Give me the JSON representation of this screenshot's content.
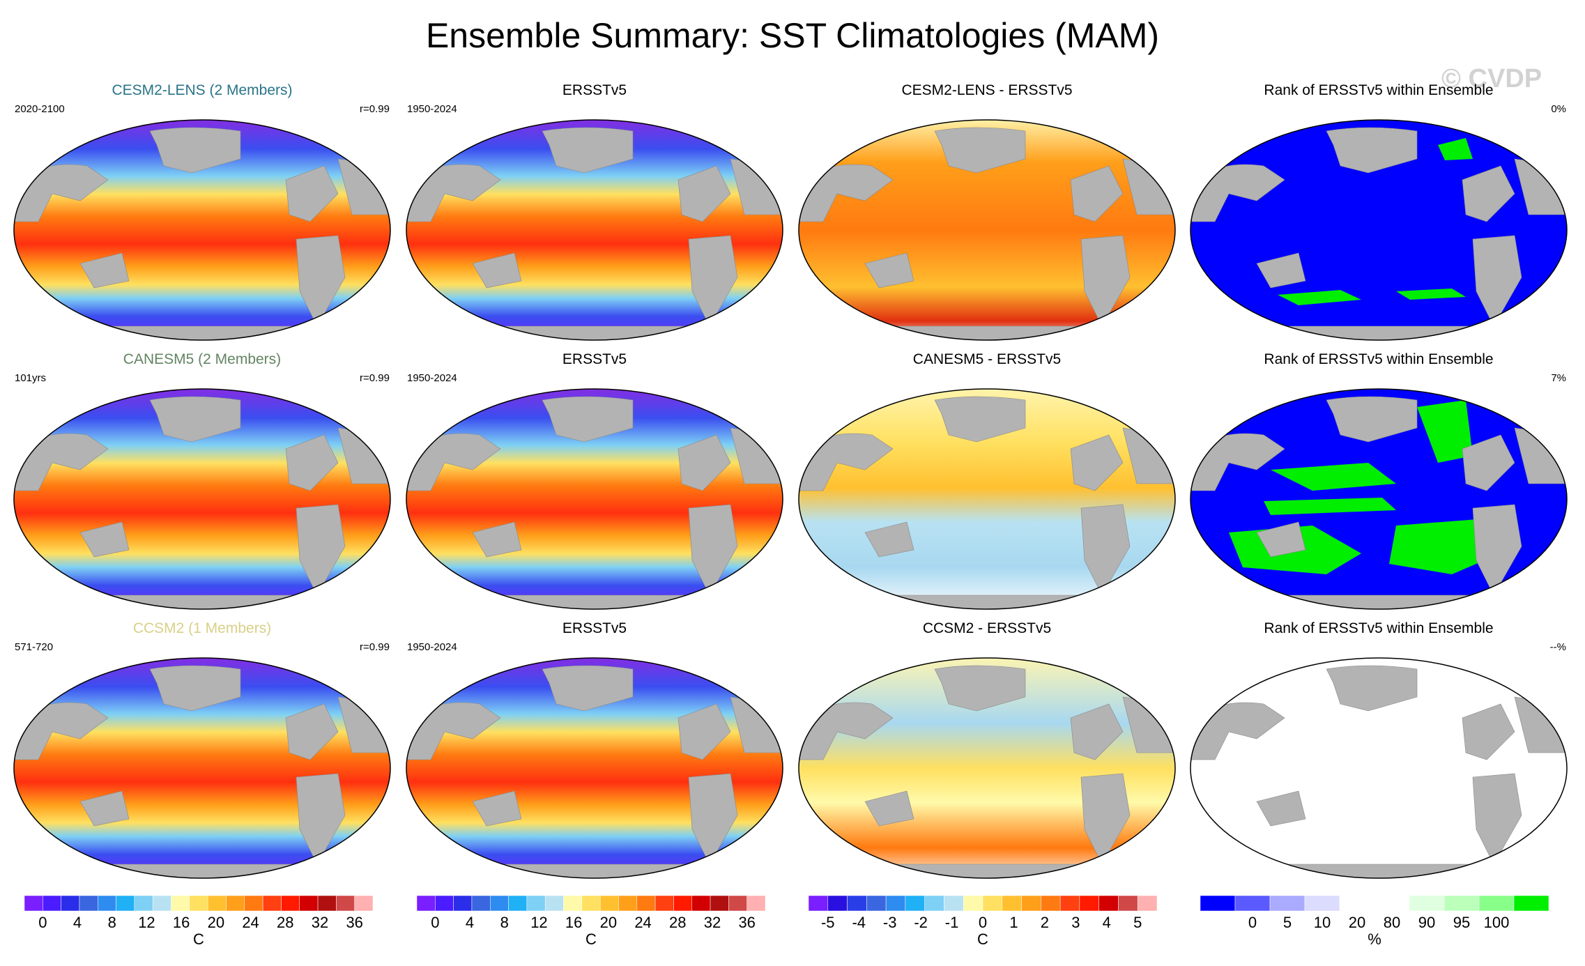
{
  "title": "Ensemble Summary: SST Climatologies (MAM)",
  "watermark": "© CVDP",
  "rows": [
    {
      "model": {
        "title": "CESM2-LENS (2 Members)",
        "title_color": "#2a7488",
        "left": "2020-2100",
        "right": "r=0.99"
      },
      "obs": {
        "title": "ERSSTv5",
        "left": "1950-2024"
      },
      "diff": {
        "title": "CESM2-LENS - ERSSTv5"
      },
      "rank": {
        "title": "Rank of ERSSTv5 within Ensemble",
        "right": "0%"
      }
    },
    {
      "model": {
        "title": "CANESM5 (2 Members)",
        "title_color": "#638463",
        "left": "101yrs",
        "right": "r=0.99"
      },
      "obs": {
        "title": "ERSSTv5",
        "left": "1950-2024"
      },
      "diff": {
        "title": "CANESM5 - ERSSTv5"
      },
      "rank": {
        "title": "Rank of ERSSTv5 within Ensemble",
        "right": "7%"
      }
    },
    {
      "model": {
        "title": "CCSM2 (1 Members)",
        "title_color": "#d8d088",
        "left": "571-720",
        "right": "r=0.99"
      },
      "obs": {
        "title": "ERSSTv5",
        "left": "1950-2024"
      },
      "diff": {
        "title": "CCSM2 - ERSSTv5"
      },
      "rank": {
        "title": "Rank of ERSSTv5 within Ensemble",
        "right": "--%"
      }
    }
  ],
  "colorbars": [
    {
      "unit": "C",
      "labels": [
        "0",
        "4",
        "8",
        "12",
        "16",
        "20",
        "24",
        "28",
        "32",
        "36"
      ],
      "colors": [
        "#7a1fff",
        "#4b1cff",
        "#2a2ee8",
        "#3a66e0",
        "#2e8cf0",
        "#20b0f5",
        "#7ed0f5",
        "#b8e2f2",
        "#fffaaa",
        "#ffe060",
        "#ffc030",
        "#ff9f1a",
        "#ff7a10",
        "#ff4010",
        "#ff1a00",
        "#d20000",
        "#b01010",
        "#d04848",
        "#ffb0b0"
      ]
    },
    {
      "unit": "C",
      "labels": [
        "0",
        "4",
        "8",
        "12",
        "16",
        "20",
        "24",
        "28",
        "32",
        "36"
      ],
      "colors": [
        "#7a1fff",
        "#4b1cff",
        "#2a2ee8",
        "#3a66e0",
        "#2e8cf0",
        "#20b0f5",
        "#7ed0f5",
        "#b8e2f2",
        "#fffaaa",
        "#ffe060",
        "#ffc030",
        "#ff9f1a",
        "#ff7a10",
        "#ff4010",
        "#ff1a00",
        "#d20000",
        "#b01010",
        "#d04848",
        "#ffb0b0"
      ]
    },
    {
      "unit": "C",
      "labels": [
        "-5",
        "-4",
        "-3",
        "-2",
        "-1",
        "0",
        "1",
        "2",
        "3",
        "4",
        "5"
      ],
      "colors": [
        "#7a1fff",
        "#2a10e0",
        "#2a3ee8",
        "#3a66e0",
        "#2e8cf0",
        "#20b0f5",
        "#7ed0f5",
        "#b8e2f2",
        "#fffaaa",
        "#ffe060",
        "#ffc030",
        "#ff9f1a",
        "#ff7a10",
        "#ff4010",
        "#ff1a00",
        "#d20000",
        "#d04848",
        "#ffb0b0"
      ]
    },
    {
      "unit": "%",
      "labels": [
        "0",
        "5",
        "10",
        "20",
        "80",
        "90",
        "95",
        "100"
      ],
      "colors": [
        "#0000ff",
        "#5a5aff",
        "#aaaaff",
        "#dcdcff",
        "#ffffff",
        "#ffffff",
        "#e0ffe0",
        "#bbffbb",
        "#88ff88",
        "#00ee00"
      ]
    }
  ]
}
